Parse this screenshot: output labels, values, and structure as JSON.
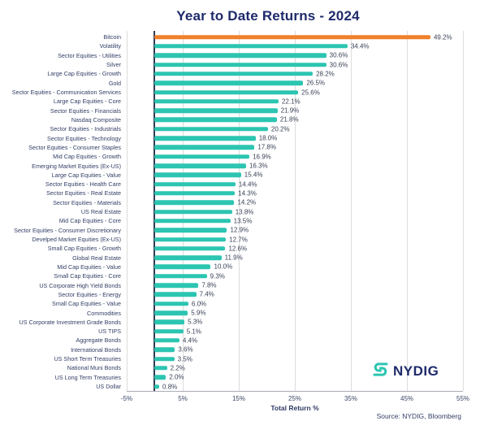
{
  "logo": {
    "text": "NYDIG"
  },
  "chart_data": {
    "type": "bar",
    "orientation": "horizontal",
    "title": "Year to Date Returns - 2024",
    "xlabel": "Total Return %",
    "source": "Source: NYDIG, Bloomberg",
    "xlim": [
      -5,
      55
    ],
    "grid": true,
    "bar_color": "#2CC5B1",
    "highlight_color": "#F0802A",
    "highlight_index": 0,
    "value_suffix": "%",
    "xticks": [
      {
        "value": -5,
        "label": "-5%"
      },
      {
        "value": 5,
        "label": "5%"
      },
      {
        "value": 15,
        "label": "15%"
      },
      {
        "value": 25,
        "label": "25%"
      },
      {
        "value": 35,
        "label": "35%"
      },
      {
        "value": 45,
        "label": "45%"
      },
      {
        "value": 55,
        "label": "55%"
      }
    ],
    "categories": [
      "Bitcoin",
      "Volatility",
      "Sector Equities - Utilities",
      "Silver",
      "Large Cap Equities - Growth",
      "Gold",
      "Sector Equities - Communication Services",
      "Large Cap Equities - Core",
      "Sector Equities - Financials",
      "Nasdaq Composite",
      "Sector Equities - Industrials",
      "Sector Equities - Technology",
      "Sector Equities - Consumer Staples",
      "Mid Cap Equities - Growth",
      "Emerging Market Equities (Ex-US)",
      "Large Cap Equities - Value",
      "Sector Equities - Health Care",
      "Sector Equities - Real Estate",
      "Sector Equities - Materials",
      "US Real Estate",
      "Mid Cap Equities - Core",
      "Sector Equities - Consumer Discretionary",
      "Develped Market Equities (Ex-US)",
      "Small Cap Equities - Growth",
      "Global Real Estate",
      "Mid Cap Equities - Value",
      "Small Cap Equities - Core",
      "US Corporate High Yield Bonds",
      "Sector Equities - Energy",
      "Small Cap Equities - Value",
      "Commodities",
      "US Corporate Investment Grade Bonds",
      "US TIPS",
      "Aggregate Bonds",
      "International Bonds",
      "US Short Term Treasuries",
      "National Muni Bonds",
      "US Long Term Treasuries",
      "US Dollar"
    ],
    "values": [
      49.2,
      34.4,
      30.6,
      30.6,
      28.2,
      26.5,
      25.6,
      22.1,
      21.9,
      21.8,
      20.2,
      18.0,
      17.8,
      16.9,
      16.3,
      15.4,
      14.4,
      14.3,
      14.2,
      13.8,
      13.5,
      12.9,
      12.7,
      12.6,
      11.9,
      10.0,
      9.3,
      7.8,
      7.4,
      6.0,
      5.9,
      5.3,
      5.1,
      4.4,
      3.6,
      3.5,
      2.2,
      2.0,
      0.8
    ]
  }
}
